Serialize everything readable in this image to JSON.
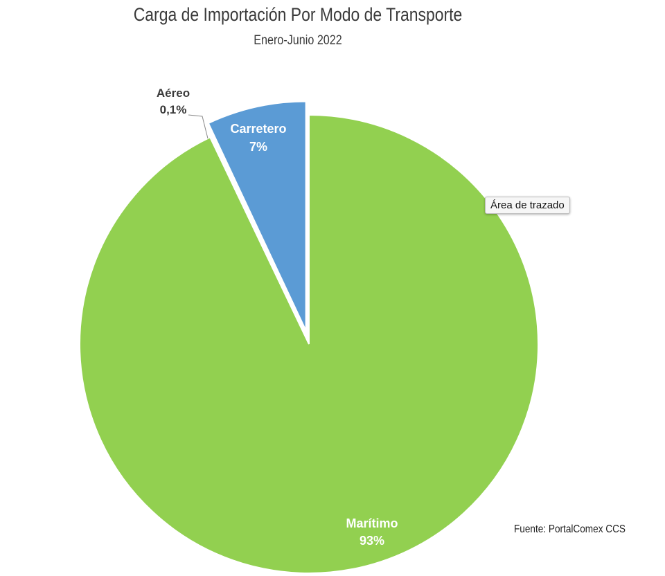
{
  "chart_data": {
    "type": "pie",
    "title": "Carga de Importación Por Modo de Transporte",
    "subtitle": "Enero-Junio 2022",
    "slices": [
      {
        "label": "Marítimo",
        "value": 93,
        "display": "93%",
        "color": "#92d050"
      },
      {
        "label": "Aéreo",
        "value": 0.1,
        "display": "0,1%",
        "color": "#a5a5a5"
      },
      {
        "label": "Carretero",
        "value": 7,
        "display": "7%",
        "color": "#5b9bd5",
        "exploded": true
      }
    ],
    "source": "Fuente: PortalComex CCS"
  },
  "tooltip": "Área de trazado"
}
